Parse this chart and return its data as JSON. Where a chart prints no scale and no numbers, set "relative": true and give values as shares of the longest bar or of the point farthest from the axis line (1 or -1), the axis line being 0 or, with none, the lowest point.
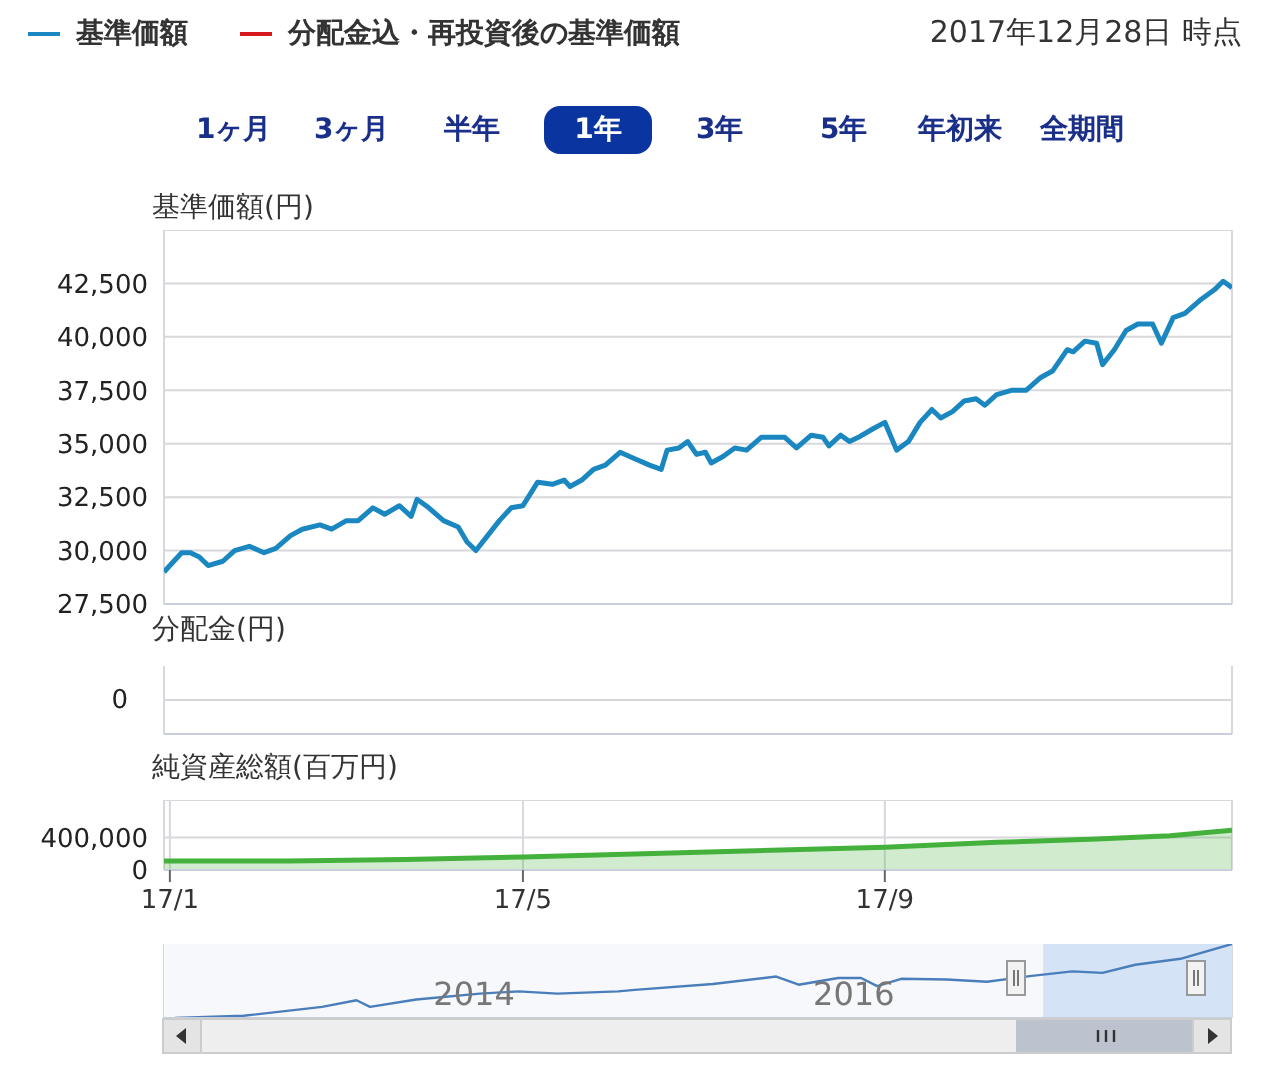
{
  "chart_data": [
    {
      "type": "line",
      "ylabel": "基準価額(円)",
      "legend": "top left",
      "grid": true,
      "tick_labels": "y",
      "marker": "none",
      "annotations": [
        "2017年12月28日 時点",
        "1ヶ月",
        "3ヶ月",
        "半年",
        "1年",
        "3年",
        "5年",
        "年初来",
        "全期間"
      ],
      "xlim": [
        "2016-12-30",
        "2017-12-28"
      ],
      "xticks": [
        {
          "value": "2017-01-01",
          "label": null
        },
        {
          "value": "2017-05-01",
          "label": null
        },
        {
          "value": "2017-09-01",
          "label": null
        }
      ],
      "ylim": [
        27500,
        45000
      ],
      "yticks": [
        {
          "value": 27500,
          "label": "27,500"
        },
        {
          "value": 30000,
          "label": "30,000"
        },
        {
          "value": 32500,
          "label": "32,500"
        },
        {
          "value": 35000,
          "label": "35,000"
        },
        {
          "value": 37500,
          "label": "37,500"
        },
        {
          "value": 40000,
          "label": "40,000"
        },
        {
          "value": 42500,
          "label": "42,500"
        }
      ],
      "x": [
        "2016-12-30",
        "2017-01-01",
        "2017-01-05",
        "2017-01-08",
        "2017-01-11",
        "2017-01-14",
        "2017-01-19",
        "2017-01-23",
        "2017-01-28",
        "2017-02-02",
        "2017-02-06",
        "2017-02-11",
        "2017-02-15",
        "2017-02-21",
        "2017-02-25",
        "2017-03-02",
        "2017-03-06",
        "2017-03-11",
        "2017-03-15",
        "2017-03-20",
        "2017-03-24",
        "2017-03-26",
        "2017-03-30",
        "2017-04-04",
        "2017-04-09",
        "2017-04-12",
        "2017-04-15",
        "2017-04-19",
        "2017-04-23",
        "2017-04-27",
        "2017-05-01",
        "2017-05-06",
        "2017-05-11",
        "2017-05-15",
        "2017-05-17",
        "2017-05-21",
        "2017-05-25",
        "2017-05-29",
        "2017-06-03",
        "2017-06-08",
        "2017-06-13",
        "2017-06-17",
        "2017-06-19",
        "2017-06-23",
        "2017-06-26",
        "2017-06-29",
        "2017-07-02",
        "2017-07-04",
        "2017-07-08",
        "2017-07-12",
        "2017-07-16",
        "2017-07-21",
        "2017-07-26",
        "2017-07-29",
        "2017-08-02",
        "2017-08-07",
        "2017-08-11",
        "2017-08-13",
        "2017-08-17",
        "2017-08-20",
        "2017-08-23",
        "2017-08-28",
        "2017-09-01",
        "2017-09-05",
        "2017-09-09",
        "2017-09-13",
        "2017-09-17",
        "2017-09-20",
        "2017-09-24",
        "2017-09-28",
        "2017-10-02",
        "2017-10-05",
        "2017-10-09",
        "2017-10-14",
        "2017-10-19",
        "2017-10-24",
        "2017-10-28",
        "2017-11-02",
        "2017-11-04",
        "2017-11-08",
        "2017-11-12",
        "2017-11-14",
        "2017-11-18",
        "2017-11-22",
        "2017-11-26",
        "2017-12-01",
        "2017-12-04",
        "2017-12-08",
        "2017-12-12",
        "2017-12-17",
        "2017-12-22",
        "2017-12-25",
        "2017-12-28"
      ],
      "series": [
        {
          "name": "基準価額",
          "color": "#1a87c0",
          "values": [
            29000,
            29300,
            29900,
            29900,
            29700,
            29300,
            29500,
            30000,
            30200,
            29900,
            30100,
            30700,
            31000,
            31200,
            31000,
            31400,
            31400,
            32000,
            31700,
            32100,
            31600,
            32400,
            32000,
            31400,
            31100,
            30400,
            30000,
            30700,
            31400,
            32000,
            32100,
            33200,
            33100,
            33300,
            33000,
            33300,
            33800,
            34000,
            34600,
            34300,
            34000,
            33800,
            34700,
            34800,
            35100,
            34500,
            34600,
            34100,
            34400,
            34800,
            34700,
            35300,
            35300,
            35300,
            34800,
            35400,
            35300,
            34900,
            35400,
            35100,
            35300,
            35700,
            36000,
            34700,
            35100,
            36000,
            36600,
            36200,
            36500,
            37000,
            37100,
            36800,
            37300,
            37500,
            37500,
            38100,
            38400,
            39400,
            39300,
            39800,
            39700,
            38700,
            39400,
            40300,
            40600,
            40600,
            39700,
            40900,
            41100,
            41700,
            42200,
            42600,
            42300
          ]
        },
        {
          "name": "分配金込・再投資後の基準価額",
          "color": "#d7191c",
          "values": [
            null,
            null,
            null,
            null,
            null,
            null,
            null,
            null,
            null,
            null,
            null,
            null,
            null,
            null,
            null,
            null,
            null,
            null,
            null,
            null,
            null,
            null,
            null,
            null,
            null,
            null,
            null,
            null,
            null,
            null,
            null,
            null,
            null,
            null,
            null,
            null,
            null,
            null,
            null,
            null,
            null,
            null,
            null,
            null,
            null,
            null,
            null,
            null,
            null,
            null,
            null,
            null,
            null,
            null,
            null,
            null,
            null,
            null,
            null,
            null,
            null,
            null,
            null,
            null,
            null,
            null,
            null,
            null,
            null,
            null,
            null,
            null,
            null,
            null,
            null,
            null,
            null,
            null,
            null,
            null,
            null,
            null,
            null,
            null,
            null,
            null,
            null,
            null,
            null,
            null,
            null,
            null,
            null
          ]
        }
      ]
    },
    {
      "type": "other",
      "ylabel": "分配金(円)",
      "annotations": [
        "0"
      ]
    },
    {
      "type": "area",
      "ylabel": "純資産総額(百万円)",
      "grid": true,
      "xlim": [
        "2016-12-30",
        "2017-12-28"
      ],
      "xticks": [
        {
          "value": "2017-01-01",
          "label": "17/1"
        },
        {
          "value": "2017-05-01",
          "label": "17/5"
        },
        {
          "value": "2017-09-01",
          "label": "17/9"
        }
      ],
      "ylim": [
        0,
        860000
      ],
      "yticks": [
        0,
        {
          "value": 400000,
          "label": "400,000"
        }
      ],
      "x": [
        "2016-12-30",
        "2017-02-10",
        "2017-03-22",
        "2017-05-01",
        "2017-07-03",
        "2017-09-01",
        "2017-10-09",
        "2017-11-12",
        "2017-12-07",
        "2017-12-28"
      ],
      "series": [
        {
          "color": "#43b13c",
          "values": [
            110000,
            110000,
            130000,
            160000,
            220000,
            280000,
            340000,
            380000,
            420000,
            490000
          ]
        }
      ]
    },
    {
      "type": "line",
      "relative": true,
      "grid": "x",
      "tick_labels": "x",
      "xlim": [
        "2012-05-15",
        "2017-12-28"
      ],
      "xticks": [
        {
          "value": "2014-01-01",
          "label": "2014"
        },
        {
          "value": "2016-01-01",
          "label": "2016"
        }
      ],
      "bands": [
        {
          "axis": "x",
          "from": "2016-12-30",
          "to": "2017-12-28",
          "color": "#cfe0f5"
        }
      ],
      "x": [
        "2012-06-05",
        "2012-10-15",
        "2013-03-15",
        "2013-05-20",
        "2013-06-15",
        "2013-09-12",
        "2014-01-12",
        "2014-03-28",
        "2014-06-10",
        "2014-10-05",
        "2014-11-06",
        "2015-04-05",
        "2015-08-05",
        "2015-09-17",
        "2015-12-02",
        "2016-01-15",
        "2016-02-15",
        "2016-04-01",
        "2016-06-28",
        "2016-09-13",
        "2016-12-08",
        "2017-02-24",
        "2017-04-23",
        "2017-06-25",
        "2017-09-20",
        "2017-12-28"
      ],
      "series": [
        {
          "color": "#4a7ebb",
          "values": [
            0,
            0.03,
            0.15,
            0.24,
            0.15,
            0.25,
            0.33,
            0.36,
            0.33,
            0.36,
            0.38,
            0.46,
            0.56,
            0.45,
            0.54,
            0.54,
            0.43,
            0.53,
            0.52,
            0.49,
            0.57,
            0.63,
            0.61,
            0.72,
            0.8,
            1
          ]
        }
      ]
    }
  ]
}
